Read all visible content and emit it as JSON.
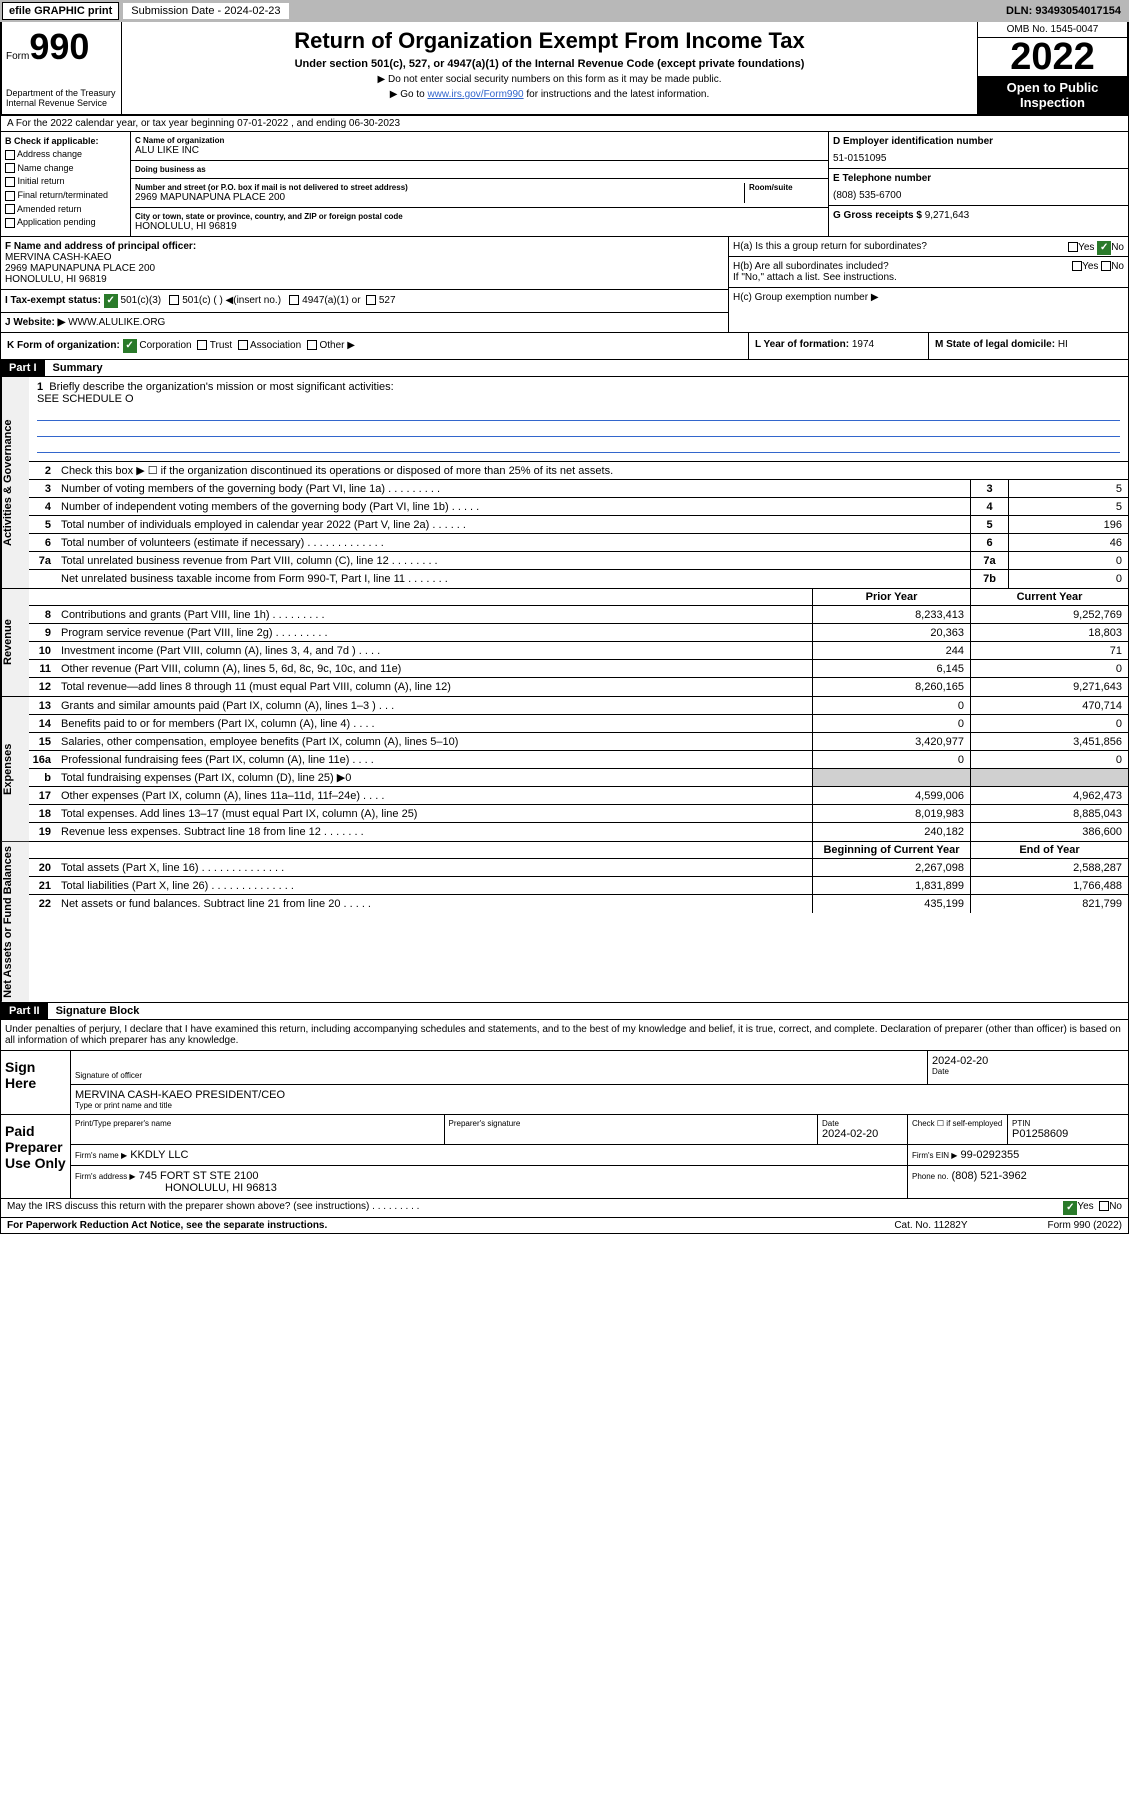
{
  "topbar": {
    "efile": "efile GRAPHIC print",
    "subdate_label": "Submission Date - ",
    "subdate_value": "2024-02-23",
    "dln": "DLN: 93493054017154"
  },
  "header": {
    "form_label": "Form",
    "form_num": "990",
    "dept": "Department of the Treasury Internal Revenue Service",
    "title": "Return of Organization Exempt From Income Tax",
    "subtitle": "Under section 501(c), 527, or 4947(a)(1) of the Internal Revenue Code (except private foundations)",
    "note1": "▶ Do not enter social security numbers on this form as it may be made public.",
    "note2_pre": "▶ Go to ",
    "note2_link": "www.irs.gov/Form990",
    "note2_post": " for instructions and the latest information.",
    "omb": "OMB No. 1545-0047",
    "year": "2022",
    "open_public": "Open to Public Inspection"
  },
  "section_a": "A For the 2022 calendar year, or tax year beginning 07-01-2022  , and ending 06-30-2023",
  "section_b": {
    "label": "B Check if applicable:",
    "opts": [
      "Address change",
      "Name change",
      "Initial return",
      "Final return/terminated",
      "Amended return",
      "Application pending"
    ]
  },
  "section_c": {
    "name_label": "C Name of organization",
    "name_value": "ALU LIKE INC",
    "dba_label": "Doing business as",
    "addr_label": "Number and street (or P.O. box if mail is not delivered to street address)",
    "room_label": "Room/suite",
    "addr_value": "2969 MAPUNAPUNA PLACE 200",
    "city_label": "City or town, state or province, country, and ZIP or foreign postal code",
    "city_value": "HONOLULU, HI  96819"
  },
  "section_d": {
    "label": "D Employer identification number",
    "value": "51-0151095"
  },
  "section_e": {
    "label": "E Telephone number",
    "value": "(808) 535-6700"
  },
  "section_g": {
    "label": "G Gross receipts $",
    "value": "9,271,643"
  },
  "section_f": {
    "label": "F Name and address of principal officer:",
    "name": "MERVINA CASH-KAEO",
    "addr1": "2969 MAPUNAPUNA PLACE 200",
    "addr2": "HONOLULU, HI  96819"
  },
  "section_h": {
    "ha": "H(a) Is this a group return for subordinates?",
    "hb": "H(b) Are all subordinates included?",
    "hb_note": "If \"No,\" attach a list. See instructions.",
    "hc": "H(c) Group exemption number ▶",
    "yes": "Yes",
    "no": "No"
  },
  "section_i": {
    "label": "I   Tax-exempt status:",
    "opt1": "501(c)(3)",
    "opt2": "501(c) (  ) ◀(insert no.)",
    "opt3": "4947(a)(1) or",
    "opt4": "527"
  },
  "section_j": {
    "label": "J   Website: ▶",
    "value": "WWW.ALULIKE.ORG"
  },
  "section_k": {
    "label": "K Form of organization:",
    "opts": [
      "Corporation",
      "Trust",
      "Association",
      "Other ▶"
    ]
  },
  "section_l": {
    "label": "L Year of formation:",
    "value": "1974"
  },
  "section_m": {
    "label": "M State of legal domicile:",
    "value": "HI"
  },
  "part1": {
    "header": "Part I",
    "title": "Summary",
    "q1": "Briefly describe the organization's mission or most significant activities:",
    "q1_answer": "SEE SCHEDULE O",
    "q2": "Check this box ▶ ☐  if the organization discontinued its operations or disposed of more than 25% of its net assets.",
    "rows_single": [
      {
        "num": "3",
        "text": "Number of voting members of the governing body (Part VI, line 1a)   .    .    .    .    .    .    .    .    .",
        "box": "3",
        "val": "5"
      },
      {
        "num": "4",
        "text": "Number of independent voting members of the governing body (Part VI, line 1b)   .    .    .    .    .",
        "box": "4",
        "val": "5"
      },
      {
        "num": "5",
        "text": "Total number of individuals employed in calendar year 2022 (Part V, line 2a)   .    .    .    .    .    .",
        "box": "5",
        "val": "196"
      },
      {
        "num": "6",
        "text": "Total number of volunteers (estimate if necessary)   .    .    .    .    .    .    .    .    .    .    .    .    .",
        "box": "6",
        "val": "46"
      },
      {
        "num": "7a",
        "text": "Total unrelated business revenue from Part VIII, column (C), line 12   .    .    .    .    .    .    .    .",
        "box": "7a",
        "val": "0"
      },
      {
        "num": "",
        "text": "Net unrelated business taxable income from Form 990-T, Part I, line 11   .    .    .    .    .    .    .",
        "box": "7b",
        "val": "0"
      }
    ],
    "col_head_prior": "Prior Year",
    "col_head_current": "Current Year",
    "side_labels": {
      "gov": "Activities & Governance",
      "rev": "Revenue",
      "exp": "Expenses",
      "net": "Net Assets or Fund Balances"
    },
    "revenue_rows": [
      {
        "num": "8",
        "text": "Contributions and grants (Part VIII, line 1h)   .    .    .    .    .    .    .    .    .",
        "prior": "8,233,413",
        "cur": "9,252,769"
      },
      {
        "num": "9",
        "text": "Program service revenue (Part VIII, line 2g)   .    .    .    .    .    .    .    .    .",
        "prior": "20,363",
        "cur": "18,803"
      },
      {
        "num": "10",
        "text": "Investment income (Part VIII, column (A), lines 3, 4, and 7d )   .    .    .    .",
        "prior": "244",
        "cur": "71"
      },
      {
        "num": "11",
        "text": "Other revenue (Part VIII, column (A), lines 5, 6d, 8c, 9c, 10c, and 11e)",
        "prior": "6,145",
        "cur": "0"
      },
      {
        "num": "12",
        "text": "Total revenue—add lines 8 through 11 (must equal Part VIII, column (A), line 12)",
        "prior": "8,260,165",
        "cur": "9,271,643"
      }
    ],
    "expense_rows": [
      {
        "num": "13",
        "text": "Grants and similar amounts paid (Part IX, column (A), lines 1–3 )   .    .    .",
        "prior": "0",
        "cur": "470,714"
      },
      {
        "num": "14",
        "text": "Benefits paid to or for members (Part IX, column (A), line 4)   .    .    .    .",
        "prior": "0",
        "cur": "0"
      },
      {
        "num": "15",
        "text": "Salaries, other compensation, employee benefits (Part IX, column (A), lines 5–10)",
        "prior": "3,420,977",
        "cur": "3,451,856"
      },
      {
        "num": "16a",
        "text": "Professional fundraising fees (Part IX, column (A), line 11e)   .    .    .    .",
        "prior": "0",
        "cur": "0"
      },
      {
        "num": "b",
        "text": "Total fundraising expenses (Part IX, column (D), line 25) ▶0",
        "prior": "",
        "cur": "",
        "shaded": true
      },
      {
        "num": "17",
        "text": "Other expenses (Part IX, column (A), lines 11a–11d, 11f–24e)   .    .    .    .",
        "prior": "4,599,006",
        "cur": "4,962,473"
      },
      {
        "num": "18",
        "text": "Total expenses. Add lines 13–17 (must equal Part IX, column (A), line 25)",
        "prior": "8,019,983",
        "cur": "8,885,043"
      },
      {
        "num": "19",
        "text": "Revenue less expenses. Subtract line 18 from line 12   .    .    .    .    .    .    .",
        "prior": "240,182",
        "cur": "386,600"
      }
    ],
    "net_head_prior": "Beginning of Current Year",
    "net_head_current": "End of Year",
    "net_rows": [
      {
        "num": "20",
        "text": "Total assets (Part X, line 16)   .    .    .    .    .    .    .    .    .    .    .    .    .    .",
        "prior": "2,267,098",
        "cur": "2,588,287"
      },
      {
        "num": "21",
        "text": "Total liabilities (Part X, line 26)   .    .    .    .    .    .    .    .    .    .    .    .    .    .",
        "prior": "1,831,899",
        "cur": "1,766,488"
      },
      {
        "num": "22",
        "text": "Net assets or fund balances. Subtract line 21 from line 20   .    .    .    .    .",
        "prior": "435,199",
        "cur": "821,799"
      }
    ]
  },
  "part2": {
    "header": "Part II",
    "title": "Signature Block",
    "perjury": "Under penalties of perjury, I declare that I have examined this return, including accompanying schedules and statements, and to the best of my knowledge and belief, it is true, correct, and complete. Declaration of preparer (other than officer) is based on all information of which preparer has any knowledge."
  },
  "sign": {
    "label": "Sign Here",
    "sig_officer_label": "Signature of officer",
    "date_label": "Date",
    "date_value": "2024-02-20",
    "officer_name": "MERVINA CASH-KAEO  PRESIDENT/CEO",
    "officer_label": "Type or print name and title"
  },
  "preparer": {
    "label": "Paid Preparer Use Only",
    "col1": "Print/Type preparer's name",
    "col2": "Preparer's signature",
    "col3_label": "Date",
    "col3_value": "2024-02-20",
    "col4_label": "Check ☐ if self-employed",
    "col5_label": "PTIN",
    "col5_value": "P01258609",
    "firm_name_label": "Firm's name    ▶",
    "firm_name_value": "KKDLY LLC",
    "firm_ein_label": "Firm's EIN ▶",
    "firm_ein_value": "99-0292355",
    "firm_addr_label": "Firm's address ▶",
    "firm_addr_value": "745 FORT ST STE 2100",
    "firm_addr_value2": "HONOLULU, HI  96813",
    "phone_label": "Phone no.",
    "phone_value": "(808) 521-3962"
  },
  "footer": {
    "irs_discuss": "May the IRS discuss this return with the preparer shown above? (see instructions)   .    .    .    .    .    .    .    .    .",
    "yes": "Yes",
    "no": "No",
    "paperwork": "For Paperwork Reduction Act Notice, see the separate instructions.",
    "cat": "Cat. No. 11282Y",
    "form": "Form 990 (2022)"
  }
}
